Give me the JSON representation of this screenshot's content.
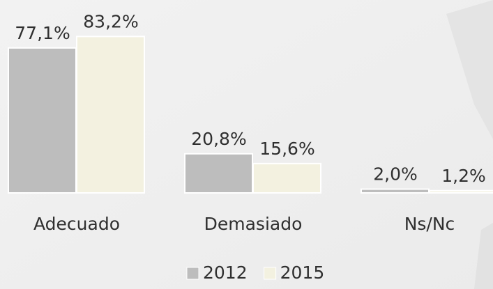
{
  "chart_data": {
    "type": "bar",
    "categories": [
      "Adecuado",
      "Demasiado",
      "Ns/Nc"
    ],
    "series": [
      {
        "name": "2012",
        "color": "#bdbdbd",
        "values": [
          77.1,
          20.8,
          2.0
        ],
        "value_labels": [
          "77,1%",
          "20,8%",
          "2,0%"
        ]
      },
      {
        "name": "2015",
        "color": "#f3f1e0",
        "values": [
          83.2,
          15.6,
          1.2
        ],
        "value_labels": [
          "83,2%",
          "15,6%",
          "1,2%"
        ]
      }
    ]
  }
}
